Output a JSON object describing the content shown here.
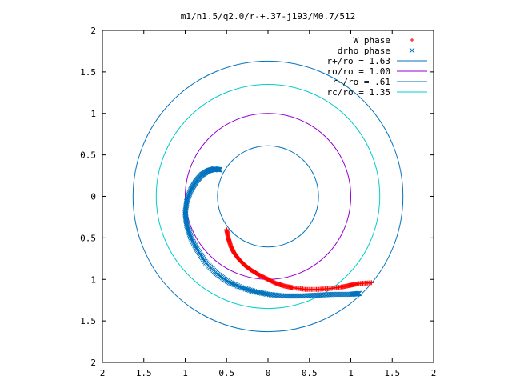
{
  "chart_data": {
    "type": "scatter",
    "title": "m1/n1.5/q2.0/r-+.37-j193/M0.7/512",
    "xlabel": "",
    "ylabel": "",
    "xlim": [
      -2,
      2
    ],
    "ylim": [
      -2,
      2
    ],
    "grid": false,
    "legend_position": "top-right",
    "x_ticks": [
      "2",
      "1.5",
      "1",
      "0.5",
      "0",
      "0.5",
      "1",
      "1.5",
      "2"
    ],
    "y_ticks": [
      "2",
      "1.5",
      "1",
      "0.5",
      "0",
      "0.5",
      "1",
      "1.5",
      "2"
    ],
    "circles": [
      {
        "name": "r+/ro = 1.63",
        "radius": 1.63,
        "color": "#0072bd"
      },
      {
        "name": "ro/ro = 1.00",
        "radius": 1.0,
        "color": "#9400d3"
      },
      {
        "name": "r-/ro = .61",
        "radius": 0.61,
        "color": "#0072bd"
      },
      {
        "name": "rc/ro = 1.35",
        "radius": 1.35,
        "color": "#00cccc"
      }
    ],
    "series": [
      {
        "name": "W phase",
        "marker": "+",
        "color": "#ff0000",
        "points": [
          [
            -0.5,
            -0.4
          ],
          [
            -0.48,
            -0.5
          ],
          [
            -0.45,
            -0.6
          ],
          [
            -0.41,
            -0.68
          ],
          [
            -0.35,
            -0.76
          ],
          [
            -0.28,
            -0.83
          ],
          [
            -0.2,
            -0.89
          ],
          [
            -0.1,
            -0.95
          ],
          [
            0,
            -1
          ],
          [
            0.1,
            -1.05
          ],
          [
            0.2,
            -1.08
          ],
          [
            0.3,
            -1.1
          ],
          [
            0.45,
            -1.12
          ],
          [
            0.6,
            -1.12
          ],
          [
            0.75,
            -1.11
          ],
          [
            0.9,
            -1.09
          ],
          [
            1.0,
            -1.07
          ],
          [
            1.1,
            -1.05
          ],
          [
            1.25,
            -1.04
          ]
        ]
      },
      {
        "name": "drho phase",
        "marker": "×",
        "color": "#0072bd",
        "points": [
          [
            -0.58,
            0.32
          ],
          [
            -0.65,
            0.33
          ],
          [
            -0.72,
            0.31
          ],
          [
            -0.8,
            0.26
          ],
          [
            -0.87,
            0.18
          ],
          [
            -0.93,
            0.08
          ],
          [
            -0.98,
            -0.05
          ],
          [
            -1.0,
            -0.2
          ],
          [
            -0.98,
            -0.35
          ],
          [
            -0.93,
            -0.5
          ],
          [
            -0.85,
            -0.65
          ],
          [
            -0.75,
            -0.8
          ],
          [
            -0.62,
            -0.93
          ],
          [
            -0.48,
            -1.03
          ],
          [
            -0.32,
            -1.1
          ],
          [
            -0.15,
            -1.15
          ],
          [
            0,
            -1.18
          ],
          [
            0.2,
            -1.2
          ],
          [
            0.4,
            -1.2
          ],
          [
            0.6,
            -1.19
          ],
          [
            0.8,
            -1.18
          ],
          [
            1.0,
            -1.18
          ],
          [
            1.1,
            -1.17
          ]
        ]
      }
    ]
  }
}
